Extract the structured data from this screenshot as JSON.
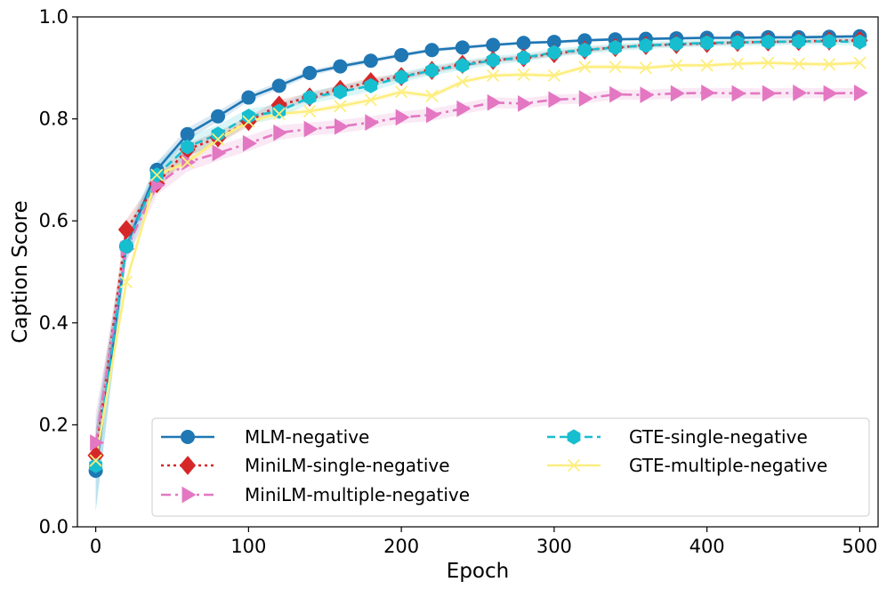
{
  "chart_data": {
    "type": "line",
    "title": "",
    "xlabel": "Epoch",
    "ylabel": "Caption Score",
    "xlim": [
      -12,
      512
    ],
    "ylim": [
      0.0,
      1.0
    ],
    "xticks": [
      0,
      100,
      200,
      300,
      400,
      500
    ],
    "xtick_labels": [
      "0",
      "100",
      "200",
      "300",
      "400",
      "500"
    ],
    "yticks": [
      0.0,
      0.2,
      0.4,
      0.6,
      0.8,
      1.0
    ],
    "ytick_labels": [
      "0.0",
      "0.2",
      "0.4",
      "0.6",
      "0.8",
      "1.0"
    ],
    "grid": false,
    "legend_position": "lower-right",
    "x": [
      0,
      20,
      40,
      60,
      80,
      100,
      120,
      140,
      160,
      180,
      200,
      220,
      240,
      260,
      280,
      300,
      320,
      340,
      360,
      380,
      400,
      420,
      440,
      460,
      480,
      500
    ],
    "series": [
      {
        "name": "MLM-negative",
        "color": "#1f77b4",
        "dash": "solid",
        "marker": "circle",
        "values": [
          0.11,
          0.55,
          0.7,
          0.77,
          0.805,
          0.842,
          0.865,
          0.89,
          0.903,
          0.914,
          0.925,
          0.935,
          0.94,
          0.945,
          0.949,
          0.951,
          0.954,
          0.956,
          0.957,
          0.958,
          0.959,
          0.959,
          0.96,
          0.96,
          0.961,
          0.962
        ],
        "band": [
          0.08,
          0.02,
          0.015,
          0.012,
          0.01,
          0.008,
          0.007,
          0.006,
          0.005,
          0.005,
          0.004,
          0.004,
          0.004,
          0.003,
          0.003,
          0.003,
          0.003,
          0.003,
          0.003,
          0.003,
          0.003,
          0.003,
          0.003,
          0.003,
          0.003,
          0.003
        ]
      },
      {
        "name": "MiniLM-single-negative",
        "color": "#d62728",
        "dash": "dotted",
        "marker": "diamond",
        "values": [
          0.14,
          0.583,
          0.673,
          0.74,
          0.763,
          0.795,
          0.827,
          0.843,
          0.858,
          0.873,
          0.883,
          0.895,
          0.907,
          0.915,
          0.92,
          0.928,
          0.935,
          0.94,
          0.944,
          0.946,
          0.948,
          0.95,
          0.951,
          0.952,
          0.953,
          0.954
        ],
        "band": [
          0.05,
          0.02,
          0.015,
          0.012,
          0.012,
          0.01,
          0.01,
          0.008,
          0.008,
          0.008,
          0.006,
          0.006,
          0.006,
          0.005,
          0.005,
          0.005,
          0.005,
          0.004,
          0.004,
          0.004,
          0.004,
          0.004,
          0.004,
          0.004,
          0.004,
          0.004
        ]
      },
      {
        "name": "MiniLM-multiple-negative",
        "color": "#e377c2",
        "dash": "dashdot",
        "marker": "triangle-right",
        "values": [
          0.165,
          0.545,
          0.67,
          0.715,
          0.733,
          0.752,
          0.773,
          0.78,
          0.785,
          0.793,
          0.803,
          0.808,
          0.82,
          0.832,
          0.83,
          0.838,
          0.84,
          0.848,
          0.847,
          0.85,
          0.851,
          0.85,
          0.85,
          0.851,
          0.85,
          0.851
        ],
        "band": [
          0.06,
          0.025,
          0.02,
          0.018,
          0.015,
          0.015,
          0.014,
          0.013,
          0.013,
          0.012,
          0.012,
          0.012,
          0.011,
          0.011,
          0.01,
          0.01,
          0.01,
          0.01,
          0.01,
          0.01,
          0.01,
          0.01,
          0.01,
          0.01,
          0.01,
          0.01
        ]
      },
      {
        "name": "GTE-single-negative",
        "color": "#17becf",
        "dash": "dashed",
        "marker": "hexagon",
        "values": [
          0.12,
          0.55,
          0.69,
          0.745,
          0.77,
          0.805,
          0.815,
          0.842,
          0.853,
          0.865,
          0.882,
          0.895,
          0.905,
          0.915,
          0.92,
          0.93,
          0.935,
          0.94,
          0.944,
          0.947,
          0.949,
          0.95,
          0.951,
          0.952,
          0.952,
          0.951
        ],
        "band": [
          0.09,
          0.03,
          0.025,
          0.02,
          0.018,
          0.015,
          0.014,
          0.012,
          0.012,
          0.011,
          0.01,
          0.01,
          0.009,
          0.009,
          0.008,
          0.008,
          0.008,
          0.007,
          0.007,
          0.007,
          0.007,
          0.007,
          0.007,
          0.007,
          0.007,
          0.007
        ]
      },
      {
        "name": "GTE-multiple-negative",
        "color": "#fdee7f",
        "dash": "solid",
        "marker": "x",
        "values": [
          0.13,
          0.48,
          0.69,
          0.715,
          0.76,
          0.795,
          0.81,
          0.815,
          0.825,
          0.837,
          0.853,
          0.845,
          0.873,
          0.885,
          0.887,
          0.885,
          0.902,
          0.902,
          0.9,
          0.905,
          0.905,
          0.908,
          0.91,
          0.908,
          0.907,
          0.91
        ],
        "band": [
          0.02,
          0.01,
          0.01,
          0.008,
          0.008,
          0.007,
          0.007,
          0.006,
          0.006,
          0.006,
          0.006,
          0.006,
          0.005,
          0.005,
          0.005,
          0.005,
          0.005,
          0.005,
          0.005,
          0.005,
          0.005,
          0.005,
          0.005,
          0.005,
          0.005,
          0.005
        ]
      }
    ],
    "legend_order": [
      0,
      3,
      1,
      4,
      2
    ]
  }
}
